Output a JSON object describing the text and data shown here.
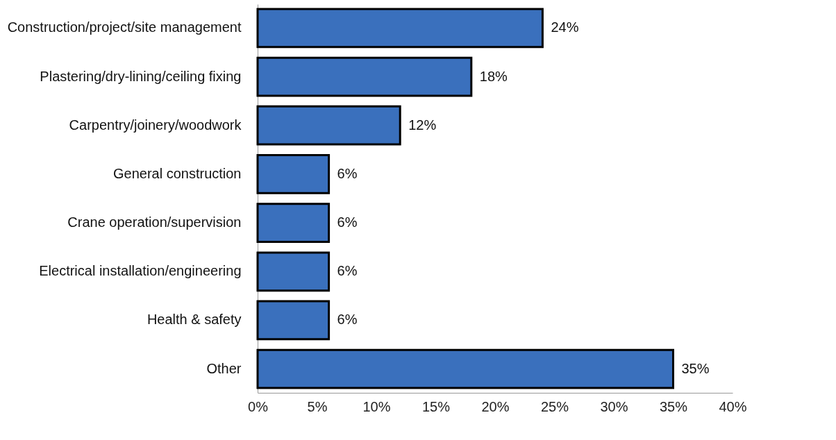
{
  "chart_data": {
    "type": "bar",
    "orientation": "horizontal",
    "categories": [
      "Construction/project/site management",
      "Plastering/dry-lining/ceiling fixing",
      "Carpentry/joinery/woodwork",
      "General construction",
      "Crane operation/supervision",
      "Electrical installation/engineering",
      "Health & safety",
      "Other"
    ],
    "values": [
      24,
      18,
      12,
      6,
      6,
      6,
      6,
      35
    ],
    "value_labels": [
      "24%",
      "18%",
      "12%",
      "6%",
      "6%",
      "6%",
      "6%",
      "35%"
    ],
    "color": "#3a70bd",
    "xlim": [
      0,
      40
    ],
    "xticks": [
      {
        "value": 0,
        "label": "0%"
      },
      {
        "value": 5,
        "label": "5%"
      },
      {
        "value": 10,
        "label": "10%"
      },
      {
        "value": 15,
        "label": "15%"
      },
      {
        "value": 20,
        "label": "20%"
      },
      {
        "value": 25,
        "label": "25%"
      },
      {
        "value": 30,
        "label": "30%"
      },
      {
        "value": 35,
        "label": "35%"
      },
      {
        "value": 40,
        "label": "40%"
      }
    ],
    "grid": false
  }
}
